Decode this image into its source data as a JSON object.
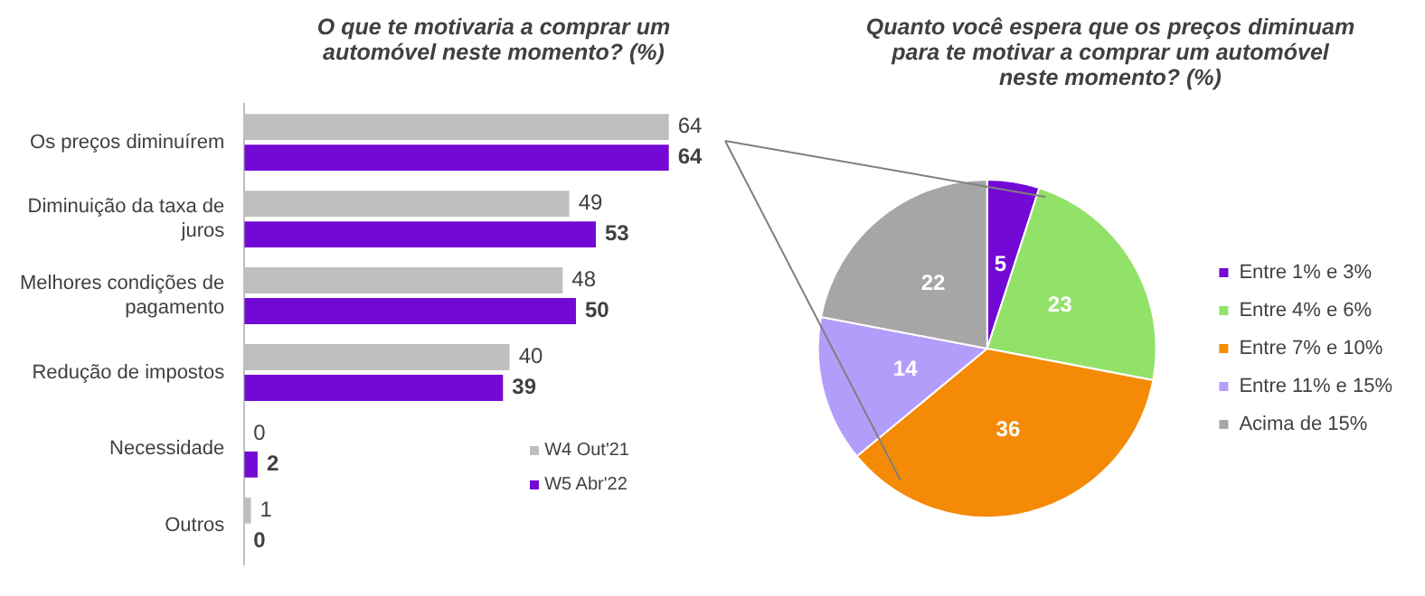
{
  "chart_data": [
    {
      "type": "bar",
      "orientation": "horizontal",
      "title": "O que te motivaria a comprar um automóvel neste momento? (%)",
      "categories": [
        "Os preços diminuírem",
        "Diminuição da taxa de juros",
        "Melhores condições de pagamento",
        "Redução de impostos",
        "Necessidade",
        "Outros"
      ],
      "series": [
        {
          "name": "W4 Out'21",
          "color": "#bfbfbf",
          "values": [
            64,
            49,
            48,
            40,
            0,
            1
          ]
        },
        {
          "name": "W5 Abr'22",
          "color": "#7209d4",
          "values": [
            64,
            53,
            50,
            39,
            2,
            0
          ]
        }
      ],
      "data_labels": true,
      "legend": "bottom right"
    },
    {
      "type": "pie",
      "title": "Quanto você espera que os preços diminuam para te motivar a comprar um automóvel neste momento? (%)",
      "categories": [
        "Entre 1% e 3%",
        "Entre 4% e 6%",
        "Entre 7% e 10%",
        "Entre 11% e 15%",
        "Acima de 15%"
      ],
      "values": [
        5,
        23,
        36,
        14,
        22
      ],
      "colors": [
        "#7209d4",
        "#92e26a",
        "#f58a07",
        "#b39dfb",
        "#a6a6a6"
      ],
      "data_labels": true,
      "legend": "right"
    }
  ]
}
